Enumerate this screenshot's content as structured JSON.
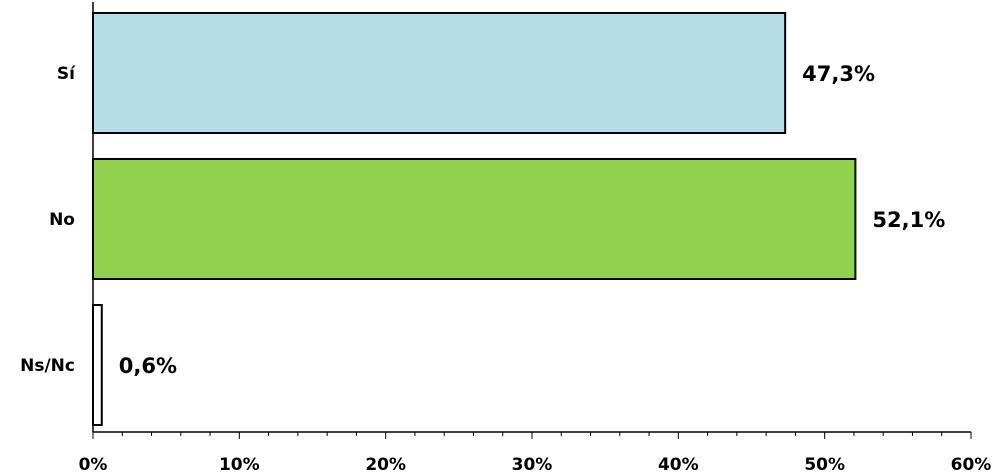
{
  "chart_data": {
    "type": "bar",
    "orientation": "horizontal",
    "title": "",
    "xlabel": "",
    "ylabel": "",
    "categories": [
      "Sí",
      "No",
      "Ns/Nc"
    ],
    "values": [
      47.3,
      52.1,
      0.6
    ],
    "data_labels": [
      "47,3%",
      "52,1%",
      "0,6%"
    ],
    "xlim": [
      0,
      60
    ],
    "x_ticks": [
      0,
      10,
      20,
      30,
      40,
      50,
      60
    ],
    "x_tick_labels": [
      "0%",
      "10%",
      "20%",
      "30%",
      "40%",
      "50%",
      "60%"
    ],
    "colors": [
      "#b7dde8",
      "#92d050",
      "#ffffff"
    ],
    "grid": false,
    "legend": "none"
  }
}
